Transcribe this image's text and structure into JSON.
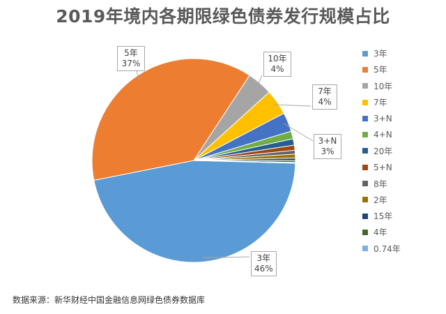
{
  "chart_data": {
    "type": "pie",
    "title": "2019年境内各期限绿色债券发行规模占比",
    "categories": [
      "3年",
      "5年",
      "10年",
      "7年",
      "3+N",
      "4+N",
      "20年",
      "5+N",
      "8年",
      "2年",
      "15年",
      "4年",
      "0.74年"
    ],
    "values": [
      46,
      37,
      4,
      4,
      3,
      1.2,
      1.0,
      0.8,
      0.6,
      0.6,
      0.4,
      0.3,
      0.1
    ],
    "colors": [
      "#5B9BD5",
      "#ED7D31",
      "#A5A5A5",
      "#FFC000",
      "#4472C4",
      "#70AD47",
      "#255E91",
      "#9E480E",
      "#636363",
      "#997300",
      "#264478",
      "#43682B",
      "#7CAFDD"
    ],
    "legend_position": "right",
    "data_labels": [
      {
        "category": "5年",
        "line1": "5年",
        "line2": "37%"
      },
      {
        "category": "10年",
        "line1": "10年",
        "line2": "4%"
      },
      {
        "category": "7年",
        "line1": "7年",
        "line2": "4%"
      },
      {
        "category": "3+N",
        "line1": "3+N",
        "line2": "3%"
      },
      {
        "category": "3年",
        "line1": "3年",
        "line2": "46%"
      }
    ]
  },
  "source_note": "数据来源：新华财经中国金融信息网绿色债券数据库"
}
